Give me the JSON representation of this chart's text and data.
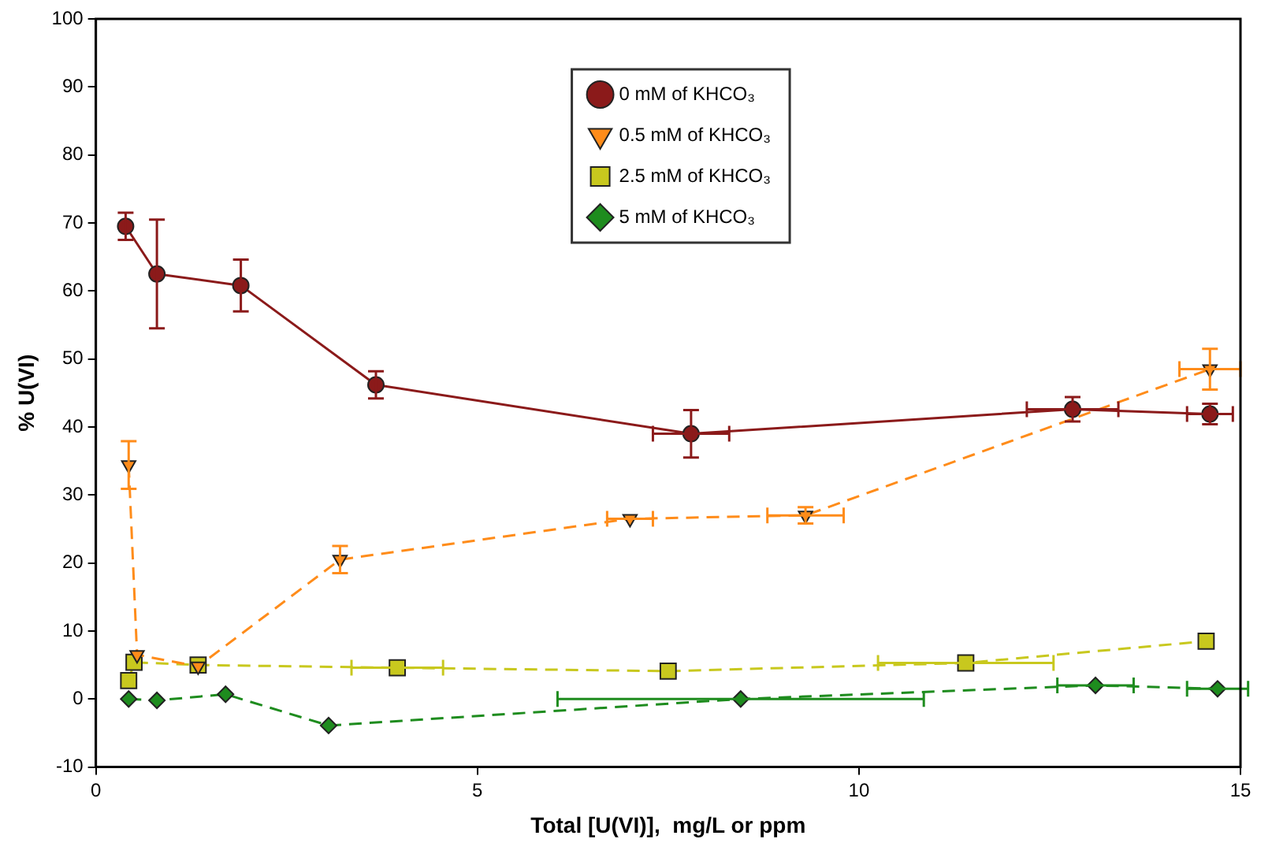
{
  "chart_data": {
    "type": "line",
    "xlabel": "Total [U(VI)],  mg/L or ppm",
    "ylabel": "% U(VI)",
    "xlim": [
      0,
      15
    ],
    "xticks": [
      0,
      5,
      10,
      15
    ],
    "ylim": [
      -10,
      100
    ],
    "yticks": [
      -10,
      0,
      10,
      20,
      30,
      40,
      50,
      60,
      70,
      80,
      90,
      100
    ],
    "grid": false,
    "legend": "top center",
    "series": [
      {
        "name": "0 mM of KHCO₃",
        "color": "#8b1a1a",
        "marker": "circle",
        "line_style": "solid",
        "x": [
          0.39,
          0.8,
          1.9,
          3.67,
          7.8,
          12.8,
          14.6
        ],
        "values": [
          69.5,
          62.5,
          60.8,
          46.2,
          39,
          42.6,
          41.9
        ],
        "errors": [
          2,
          8,
          3.8,
          2,
          3.5,
          1.8,
          1.5
        ],
        "xerrors": [
          null,
          null,
          null,
          null,
          0.5,
          0.6,
          0.3
        ]
      },
      {
        "name": "0.5 mM of KHCO₃",
        "color": "#ff8c1a",
        "marker": "triangle",
        "line_style": "dashed",
        "x": [
          0.43,
          0.54,
          1.34,
          3.2,
          7.0,
          9.3,
          14.6
        ],
        "values": [
          34.4,
          6.5,
          4.8,
          20.5,
          26.5,
          27,
          48.5
        ],
        "errors": [
          3.5,
          null,
          null,
          2,
          null,
          1.2,
          3
        ],
        "xerrors": [
          null,
          null,
          null,
          null,
          0.3,
          0.5,
          0.4
        ]
      },
      {
        "name": "2.5 mM of KHCO₃",
        "color": "#c8c81e",
        "marker": "square",
        "line_style": "dashed",
        "x": [
          0.43,
          0.5,
          1.34,
          3.95,
          7.5,
          11.4,
          14.55
        ],
        "values": [
          2.7,
          5.4,
          5,
          4.6,
          4.1,
          5.3,
          8.5
        ],
        "xerrors": [
          null,
          null,
          null,
          0.6,
          null,
          1.15,
          null
        ]
      },
      {
        "name": "5 mM of KHCO₃",
        "color": "#1e8c1e",
        "marker": "diamond",
        "line_style": "dashed",
        "x": [
          0.43,
          0.8,
          1.7,
          3.05,
          8.45,
          13.1,
          14.7
        ],
        "values": [
          0,
          -0.2,
          0.7,
          -3.9,
          0,
          2,
          1.5
        ],
        "xerrors": [
          null,
          null,
          null,
          null,
          2.4,
          0.5,
          0.4
        ]
      }
    ]
  }
}
